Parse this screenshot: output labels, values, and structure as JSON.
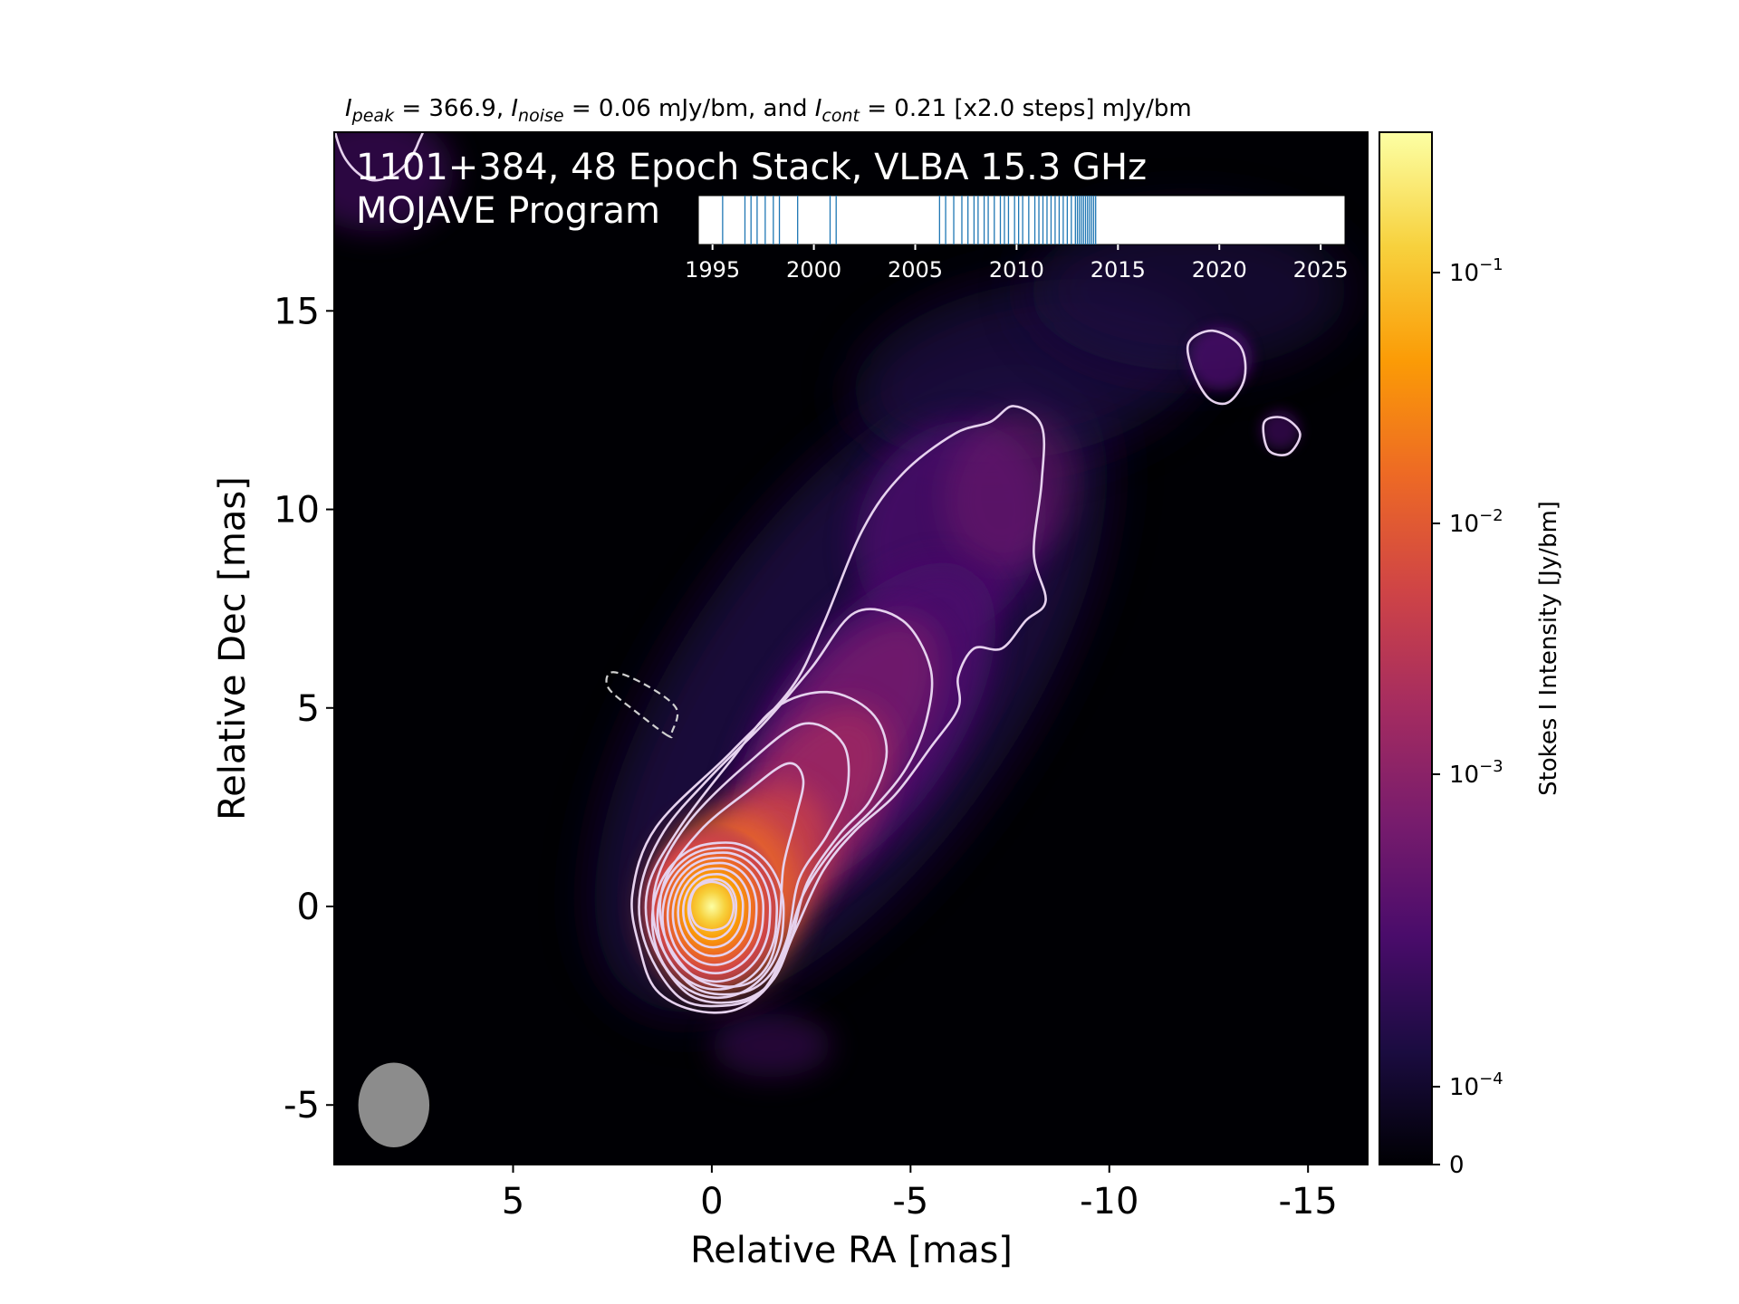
{
  "header": {
    "stats_line": [
      {
        "t": "I",
        "style": "italic"
      },
      {
        "t": "peak",
        "style": "italic-sub"
      },
      {
        "t": " = 366.9, ",
        "style": "normal"
      },
      {
        "t": "I",
        "style": "italic"
      },
      {
        "t": "noise",
        "style": "italic-sub"
      },
      {
        "t": " = 0.06 mJy/bm, and ",
        "style": "normal"
      },
      {
        "t": "I",
        "style": "italic"
      },
      {
        "t": "cont",
        "style": "italic-sub"
      },
      {
        "t": " = 0.21 [x2.0 steps] mJy/bm",
        "style": "normal"
      }
    ]
  },
  "overlay": {
    "title_line1": "1101+384, 48 Epoch Stack, VLBA 15.3 GHz",
    "title_line2": "MOJAVE Program"
  },
  "colors": {
    "colormap": [
      "#000004",
      "#1b0c41",
      "#4a0c6b",
      "#781c6d",
      "#a52c60",
      "#cf4446",
      "#ed6925",
      "#fb9b06",
      "#f7d13d",
      "#fcffa4"
    ],
    "contour": "#e6d2ee",
    "beam": "#8c8c8c",
    "epoch_tick": "#1f77b4"
  },
  "chart_data": [
    {
      "type": "heatmap",
      "description": "Stokes I intensity map with contours",
      "xlabel": "Relative RA [mas]",
      "ylabel": "Relative Dec [mas]",
      "xlim": [
        9.5,
        -16.5
      ],
      "ylim": [
        -6.5,
        19.5
      ],
      "x_inverted": true,
      "xticks": [
        5,
        0,
        -5,
        -10,
        -15
      ],
      "xtick_labels": [
        "5",
        "0",
        "-5",
        "-10",
        "-15"
      ],
      "yticks": [
        -5,
        0,
        5,
        10,
        15
      ],
      "ytick_labels": [
        "-5",
        "0",
        "5",
        "10",
        "15"
      ],
      "peak_position": [
        0,
        0
      ],
      "jet_position_angle_deg": -35,
      "contour_levels_mJy": [
        0.21,
        0.42,
        0.84,
        1.68,
        3.36,
        6.72,
        13.44,
        26.88,
        53.76,
        107.52,
        215.04
      ],
      "beam": {
        "ra": 8,
        "dec": -5,
        "major": 1.5,
        "minor": 1.25,
        "pa": 0
      }
    },
    {
      "type": "scatter",
      "description": "Observation epochs inset",
      "xlim": [
        1994.3,
        2026.2
      ],
      "xticks": [
        1995,
        2000,
        2005,
        2010,
        2015,
        2020,
        2025
      ],
      "xtick_labels": [
        "1995",
        "2000",
        "2005",
        "2010",
        "2015",
        "2020",
        "2025"
      ],
      "epochs": [
        1995.5,
        1996.6,
        1996.9,
        1997.2,
        1997.6,
        1998.0,
        1998.3,
        1999.2,
        2000.8,
        2001.1,
        2006.2,
        2006.5,
        2006.9,
        2007.3,
        2007.6,
        2007.9,
        2008.1,
        2008.4,
        2008.6,
        2008.9,
        2009.2,
        2009.4,
        2009.6,
        2009.9,
        2010.1,
        2010.3,
        2010.6,
        2010.9,
        2011.1,
        2011.3,
        2011.5,
        2011.7,
        2011.9,
        2012.1,
        2012.3,
        2012.5,
        2012.7,
        2012.9,
        2013.0,
        2013.1,
        2013.2,
        2013.3,
        2013.4,
        2013.5,
        2013.6,
        2013.7,
        2013.8,
        2013.9
      ]
    },
    {
      "type": "heatmap",
      "description": "Colorbar",
      "label": "Stokes I Intensity [Jy/bm]",
      "scale": "symlog",
      "range": [
        0,
        0.3669
      ],
      "ticks": [
        0,
        0.0001,
        0.001,
        0.01,
        0.1
      ],
      "tick_labels": [
        {
          "base": "0",
          "exp": ""
        },
        {
          "base": "10",
          "exp": "−4"
        },
        {
          "base": "10",
          "exp": "−3"
        },
        {
          "base": "10",
          "exp": "−2"
        },
        {
          "base": "10",
          "exp": "−1"
        }
      ]
    }
  ]
}
